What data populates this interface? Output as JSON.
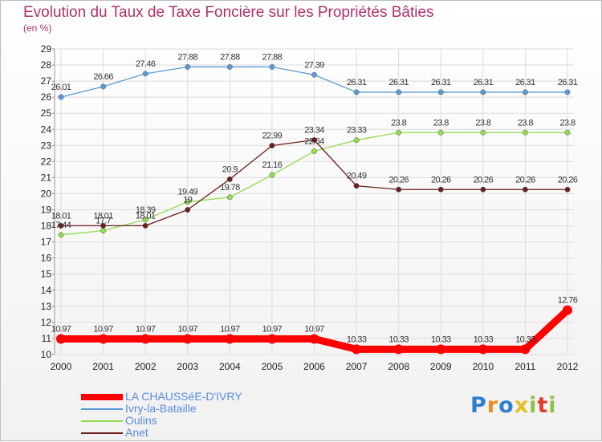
{
  "chart_data": {
    "type": "line",
    "title": "Evolution du Taux de Taxe Foncière sur les Propriétés Bâties",
    "unit": "(en %)",
    "x": [
      "2000",
      "2001",
      "2002",
      "2003",
      "2004",
      "2005",
      "2006",
      "2007",
      "2008",
      "2009",
      "2010",
      "2011",
      "2012"
    ],
    "ylim": [
      10,
      29
    ],
    "yticks": [
      10,
      11,
      12,
      13,
      14,
      15,
      16,
      17,
      18,
      19,
      20,
      21,
      22,
      23,
      24,
      25,
      26,
      27,
      28,
      29
    ],
    "grid": true,
    "legend_position": "bottom-left",
    "series": [
      {
        "name": "LA CHAUSSéE-D'IVRY",
        "color": "#ff0000",
        "values": [
          10.97,
          10.97,
          10.97,
          10.97,
          10.97,
          10.97,
          10.97,
          10.33,
          10.33,
          10.33,
          10.33,
          10.33,
          12.76
        ],
        "labels": [
          "10.97",
          "10.97",
          "10.97",
          "10.97",
          "10.97",
          "10.97",
          "10.97",
          "10.33",
          "10.33",
          "10.33",
          "10.33",
          "10.33",
          "12.76"
        ]
      },
      {
        "name": "Ivry-la-Bataille",
        "color": "#5b9bd5",
        "values": [
          26.01,
          26.66,
          27.46,
          27.88,
          27.88,
          27.88,
          27.39,
          26.31,
          26.31,
          26.31,
          26.31,
          26.31,
          26.31
        ],
        "labels": [
          "26.01",
          "26.66",
          "27.46",
          "27.88",
          "27.88",
          "27.88",
          "27.39",
          "26.31",
          "26.31",
          "26.31",
          "26.31",
          "26.31",
          "26.31"
        ]
      },
      {
        "name": "Oulins",
        "color": "#90dd50",
        "values": [
          17.44,
          17.7,
          18.39,
          19.49,
          19.78,
          21.16,
          22.64,
          23.33,
          23.8,
          23.8,
          23.8,
          23.8,
          23.8
        ],
        "labels": [
          "17.44",
          "17.7",
          "18.39",
          "19.49",
          "19.78",
          "21.16",
          "22.64",
          "23.33",
          "23.8",
          "23.8",
          "23.8",
          "23.8",
          "23.8"
        ]
      },
      {
        "name": "Anet",
        "color": "#6b1e1e",
        "values": [
          18.01,
          18.01,
          18.01,
          19,
          20.9,
          22.99,
          23.34,
          20.49,
          20.26,
          20.26,
          20.26,
          20.26,
          20.26
        ],
        "labels": [
          "18.01",
          "18.01",
          "18.01",
          "19",
          "20.9",
          "22.99",
          "23.34",
          "20.49",
          "20.26",
          "20.26",
          "20.26",
          "20.26",
          "20.26"
        ]
      }
    ]
  },
  "logo": {
    "letters": [
      "P",
      "r",
      "o",
      "x",
      "i",
      "t",
      "i"
    ],
    "colors": [
      "#2f7fd0",
      "#f08a1c",
      "#2f7fd0",
      "#e5c020",
      "#8ac34a",
      "#e33b2e",
      "#8ac34a"
    ]
  }
}
